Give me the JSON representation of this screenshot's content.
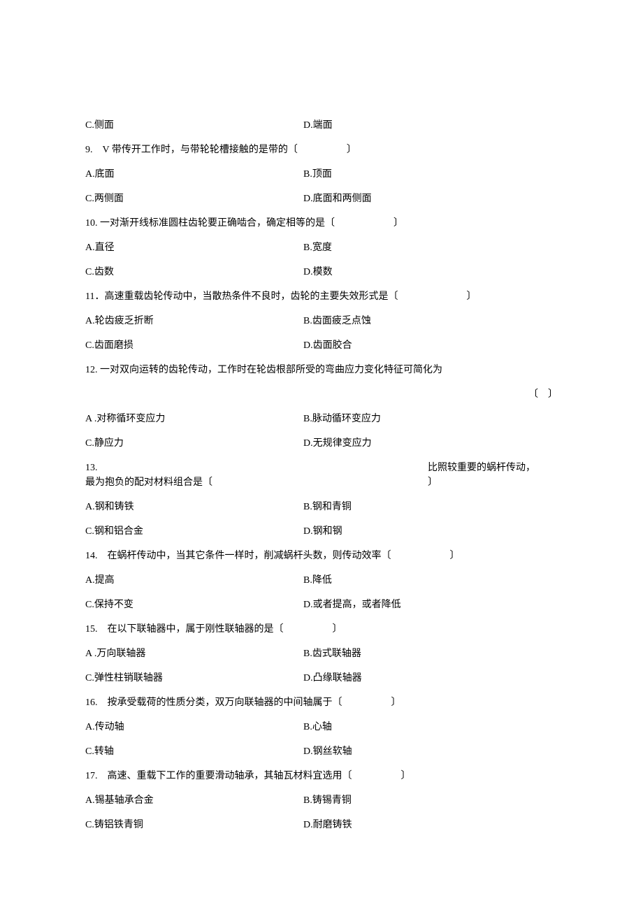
{
  "rows": [
    {
      "type": "two-col",
      "left": "C.侧面",
      "right": "D.端面"
    },
    {
      "type": "question",
      "text": "9.　V 带传开工作时，与带轮轮槽接触的是带的〔　　　　　〕"
    },
    {
      "type": "two-col",
      "left": "A.底面",
      "right": "B.顶面"
    },
    {
      "type": "two-col",
      "left": "C.两侧面",
      "right": "D.底面和两侧面"
    },
    {
      "type": "question",
      "text": "10.  一对渐开线标准圆柱齿轮要正确啮合，确定相等的是〔　　　　　　〕"
    },
    {
      "type": "two-col",
      "left": "A.直径",
      "right": "B.宽度"
    },
    {
      "type": "two-col",
      "left": "C.齿数",
      "right": "D.模数"
    },
    {
      "type": "question",
      "text": "11．高速重载齿轮传动中，当散热条件不良时，齿轮的主要失效形式是〔　　　　　　　〕"
    },
    {
      "type": "two-col",
      "left": "A.轮齿疲乏折断",
      "right": "B.齿面疲乏点蚀"
    },
    {
      "type": "two-col",
      "left": "C.齿面磨损",
      "right": "D.齿面胶合"
    },
    {
      "type": "question",
      "text": "12.  一对双向运转的齿轮传动，工作时在轮齿根部所受的弯曲应力变化特征可简化为"
    },
    {
      "type": "right-paren",
      "text": "〔　〕"
    },
    {
      "type": "two-col",
      "left": "A .对称循环变应力",
      "right": "B.脉动循环变应力"
    },
    {
      "type": "two-col",
      "left": "C.静应力",
      "right": "D.无规律变应力"
    },
    {
      "type": "q13",
      "leftTop": "13.",
      "leftBottom": "最为抱负的配对材料组合是〔",
      "rightTop": "比照较重要的蜗杆传动，",
      "rightBottom": "〕"
    },
    {
      "type": "two-col",
      "left": "A.钢和铸铁",
      "right": "B.钢和青铜"
    },
    {
      "type": "two-col",
      "left": "C.钢和铝合金",
      "right": "D.钢和钢"
    },
    {
      "type": "question",
      "text": "14.　在蜗杆传动中，当其它条件一样时，削减蜗杆头数，则传动效率〔　　　　　　〕"
    },
    {
      "type": "two-col",
      "left": "A.提高",
      "right": "B.降低"
    },
    {
      "type": "two-col",
      "left": "C.保持不变",
      "right": "D.或者提高，或者降低"
    },
    {
      "type": "question",
      "text": "15.　在以下联轴器中，属于刚性联轴器的是〔　　　　　〕"
    },
    {
      "type": "two-col",
      "left": "A .万向联轴器",
      "right": "B.齿式联轴器"
    },
    {
      "type": "two-col",
      "left": "C.弹性柱销联轴器",
      "right": "D.凸缘联轴器"
    },
    {
      "type": "question",
      "text": "16.　按承受载荷的性质分类，双万向联轴器的中间轴属于〔　　　　　〕"
    },
    {
      "type": "two-col",
      "left": "A.传动轴",
      "right": "B.心轴"
    },
    {
      "type": "two-col",
      "left": "C.转轴",
      "right": "D.钢丝软轴"
    },
    {
      "type": "question",
      "text": "17.　高速、重载下工作的重要滑动轴承，其轴瓦材料宜选用〔　　　　　〕"
    },
    {
      "type": "two-col",
      "left": "A.锡基轴承合金",
      "right": "B.铸锡青铜"
    },
    {
      "type": "two-col",
      "left": "C.铸铝铁青铜",
      "right": "D.耐磨铸铁"
    }
  ]
}
